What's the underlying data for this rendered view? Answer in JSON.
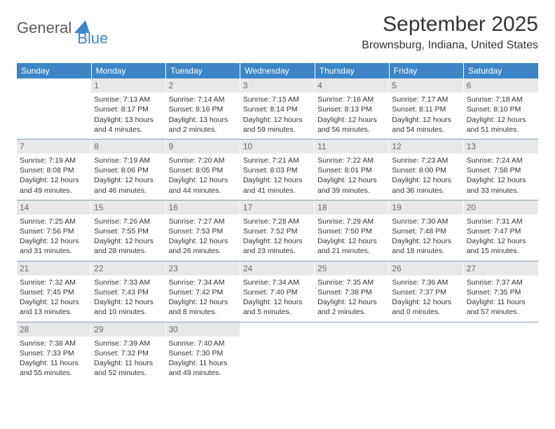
{
  "brand": {
    "part1": "General",
    "part2": "Blue"
  },
  "title": "September 2025",
  "location": "Brownsburg, Indiana, United States",
  "colors": {
    "header_bg": "#3d85c6",
    "header_fg": "#ffffff",
    "daynum_bg": "#e8e8e8",
    "daynum_fg": "#6a6a6a",
    "rule": "#7f9db9",
    "text": "#333333",
    "brand_gray": "#5a5a5a",
    "brand_blue": "#3d85c6"
  },
  "weekdays": [
    "Sunday",
    "Monday",
    "Tuesday",
    "Wednesday",
    "Thursday",
    "Friday",
    "Saturday"
  ],
  "start_offset": 1,
  "days": [
    {
      "n": 1,
      "sunrise": "7:13 AM",
      "sunset": "8:17 PM",
      "daylight": "13 hours and 4 minutes."
    },
    {
      "n": 2,
      "sunrise": "7:14 AM",
      "sunset": "8:16 PM",
      "daylight": "13 hours and 2 minutes."
    },
    {
      "n": 3,
      "sunrise": "7:15 AM",
      "sunset": "8:14 PM",
      "daylight": "12 hours and 59 minutes."
    },
    {
      "n": 4,
      "sunrise": "7:16 AM",
      "sunset": "8:13 PM",
      "daylight": "12 hours and 56 minutes."
    },
    {
      "n": 5,
      "sunrise": "7:17 AM",
      "sunset": "8:11 PM",
      "daylight": "12 hours and 54 minutes."
    },
    {
      "n": 6,
      "sunrise": "7:18 AM",
      "sunset": "8:10 PM",
      "daylight": "12 hours and 51 minutes."
    },
    {
      "n": 7,
      "sunrise": "7:19 AM",
      "sunset": "8:08 PM",
      "daylight": "12 hours and 49 minutes."
    },
    {
      "n": 8,
      "sunrise": "7:19 AM",
      "sunset": "8:06 PM",
      "daylight": "12 hours and 46 minutes."
    },
    {
      "n": 9,
      "sunrise": "7:20 AM",
      "sunset": "8:05 PM",
      "daylight": "12 hours and 44 minutes."
    },
    {
      "n": 10,
      "sunrise": "7:21 AM",
      "sunset": "8:03 PM",
      "daylight": "12 hours and 41 minutes."
    },
    {
      "n": 11,
      "sunrise": "7:22 AM",
      "sunset": "8:01 PM",
      "daylight": "12 hours and 39 minutes."
    },
    {
      "n": 12,
      "sunrise": "7:23 AM",
      "sunset": "8:00 PM",
      "daylight": "12 hours and 36 minutes."
    },
    {
      "n": 13,
      "sunrise": "7:24 AM",
      "sunset": "7:58 PM",
      "daylight": "12 hours and 33 minutes."
    },
    {
      "n": 14,
      "sunrise": "7:25 AM",
      "sunset": "7:56 PM",
      "daylight": "12 hours and 31 minutes."
    },
    {
      "n": 15,
      "sunrise": "7:26 AM",
      "sunset": "7:55 PM",
      "daylight": "12 hours and 28 minutes."
    },
    {
      "n": 16,
      "sunrise": "7:27 AM",
      "sunset": "7:53 PM",
      "daylight": "12 hours and 26 minutes."
    },
    {
      "n": 17,
      "sunrise": "7:28 AM",
      "sunset": "7:52 PM",
      "daylight": "12 hours and 23 minutes."
    },
    {
      "n": 18,
      "sunrise": "7:29 AM",
      "sunset": "7:50 PM",
      "daylight": "12 hours and 21 minutes."
    },
    {
      "n": 19,
      "sunrise": "7:30 AM",
      "sunset": "7:48 PM",
      "daylight": "12 hours and 18 minutes."
    },
    {
      "n": 20,
      "sunrise": "7:31 AM",
      "sunset": "7:47 PM",
      "daylight": "12 hours and 15 minutes."
    },
    {
      "n": 21,
      "sunrise": "7:32 AM",
      "sunset": "7:45 PM",
      "daylight": "12 hours and 13 minutes."
    },
    {
      "n": 22,
      "sunrise": "7:33 AM",
      "sunset": "7:43 PM",
      "daylight": "12 hours and 10 minutes."
    },
    {
      "n": 23,
      "sunrise": "7:34 AM",
      "sunset": "7:42 PM",
      "daylight": "12 hours and 8 minutes."
    },
    {
      "n": 24,
      "sunrise": "7:34 AM",
      "sunset": "7:40 PM",
      "daylight": "12 hours and 5 minutes."
    },
    {
      "n": 25,
      "sunrise": "7:35 AM",
      "sunset": "7:38 PM",
      "daylight": "12 hours and 2 minutes."
    },
    {
      "n": 26,
      "sunrise": "7:36 AM",
      "sunset": "7:37 PM",
      "daylight": "12 hours and 0 minutes."
    },
    {
      "n": 27,
      "sunrise": "7:37 AM",
      "sunset": "7:35 PM",
      "daylight": "11 hours and 57 minutes."
    },
    {
      "n": 28,
      "sunrise": "7:38 AM",
      "sunset": "7:33 PM",
      "daylight": "11 hours and 55 minutes."
    },
    {
      "n": 29,
      "sunrise": "7:39 AM",
      "sunset": "7:32 PM",
      "daylight": "11 hours and 52 minutes."
    },
    {
      "n": 30,
      "sunrise": "7:40 AM",
      "sunset": "7:30 PM",
      "daylight": "11 hours and 49 minutes."
    }
  ],
  "labels": {
    "sunrise": "Sunrise:",
    "sunset": "Sunset:",
    "daylight": "Daylight:"
  }
}
